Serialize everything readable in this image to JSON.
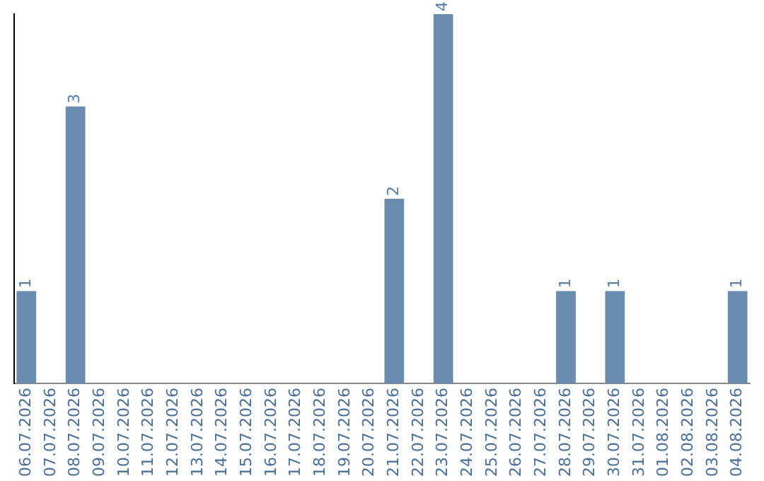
{
  "chart_data": {
    "type": "bar",
    "categories": [
      "06.07.2026",
      "07.07.2026",
      "08.07.2026",
      "09.07.2026",
      "10.07.2026",
      "11.07.2026",
      "12.07.2026",
      "13.07.2026",
      "14.07.2026",
      "15.07.2026",
      "16.07.2026",
      "17.07.2026",
      "18.07.2026",
      "19.07.2026",
      "20.07.2026",
      "21.07.2026",
      "22.07.2026",
      "23.07.2026",
      "24.07.2026",
      "25.07.2026",
      "26.07.2026",
      "27.07.2026",
      "28.07.2026",
      "29.07.2026",
      "30.07.2026",
      "31.07.2026",
      "01.08.2026",
      "02.08.2026",
      "03.08.2026",
      "04.08.2026"
    ],
    "values": [
      1,
      0,
      3,
      0,
      0,
      0,
      0,
      0,
      0,
      0,
      0,
      0,
      0,
      0,
      0,
      2,
      0,
      4,
      0,
      0,
      0,
      0,
      1,
      0,
      1,
      0,
      0,
      0,
      0,
      1
    ],
    "value_labels": [
      "1",
      null,
      "3",
      null,
      null,
      null,
      null,
      null,
      null,
      null,
      null,
      null,
      null,
      null,
      null,
      "2",
      null,
      "4",
      null,
      null,
      null,
      null,
      "1",
      null,
      "1",
      null,
      null,
      null,
      null,
      "1"
    ],
    "color": "#6a8caf",
    "tick_labels": "x",
    "grid": false,
    "legend": false
  }
}
